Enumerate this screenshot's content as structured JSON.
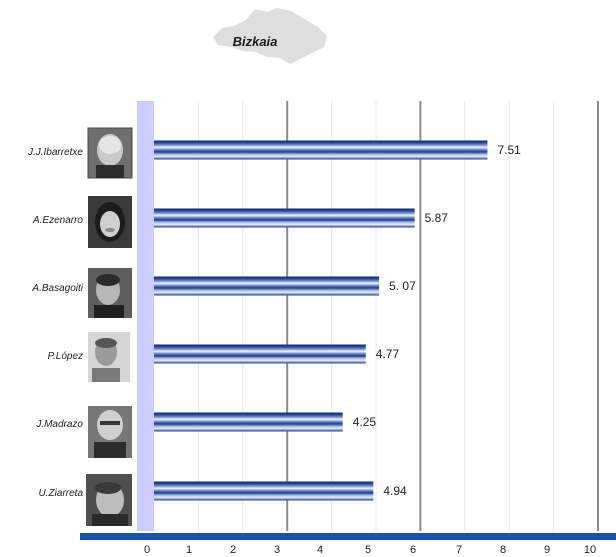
{
  "header": {
    "region": "Bizkaia"
  },
  "colors": {
    "bar_dark": "#0b2a6e",
    "bar_mid": "#4a6ab5",
    "bar_light": "#e4ecfa",
    "axis_band": "#ccccff",
    "bottom_axis": "#1a52a5",
    "grid_major": "#8c8c8c",
    "grid_minor": "#e6e6e6",
    "map_shape": "#dedede"
  },
  "chart_data": {
    "type": "bar",
    "orientation": "horizontal",
    "title": "Bizkaia",
    "categories": [
      "J.J.Ibarretxe",
      "A.Ezenarro",
      "A.Basagoiti",
      "P.López",
      "J.Madrazo",
      "U.Ziarreta"
    ],
    "values": [
      7.51,
      5.87,
      5.07,
      4.77,
      4.25,
      4.94
    ],
    "value_labels": [
      "7.51",
      "5.87",
      "5. 07",
      "4.77",
      "4.25",
      "4.94"
    ],
    "xlim": [
      0,
      10
    ],
    "x_ticks": [
      "0",
      "1",
      "2",
      "3",
      "4",
      "5",
      "6",
      "7",
      "8",
      "9",
      "10"
    ],
    "major_gridlines_at": [
      3,
      6,
      10
    ],
    "grid": true,
    "legend": "none"
  }
}
